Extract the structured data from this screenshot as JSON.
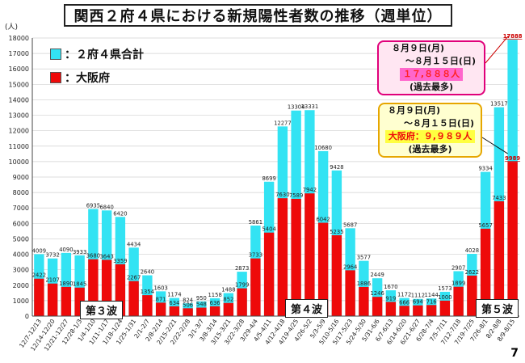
{
  "title": "関西２府４県における新規陽性者数の推移（週単位）",
  "legend": [
    {
      "label": "：２府４県合計",
      "color": "#33e3f3"
    },
    {
      "label": "：大阪府",
      "color": "#ee0a0a"
    }
  ],
  "waves": [
    "第３波",
    "第４波",
    "第５波"
  ],
  "callout_total": {
    "line1": "８月９日(月)",
    "line2": "～８月１５日(日)",
    "value": "１７,８８８人",
    "note": "(過去最多)"
  },
  "callout_osaka": {
    "line1": "８月９日(月)",
    "line2": "～８月１５日(日)",
    "value": "大阪府：９,９８９人",
    "note": "(過去最多)"
  },
  "page_number": "7",
  "chart_data": {
    "type": "bar",
    "ylabel": "(人)",
    "ylim": [
      0,
      18000
    ],
    "ytick_step": 1000,
    "grid": true,
    "categories": [
      "12/7-12/13",
      "12/14-12/20",
      "12/21-12/27",
      "12/28-1/3",
      "1/4-1/10",
      "1/11-1/17",
      "1/18-1/24",
      "1/25-1/31",
      "2/1-2/7",
      "2/8-2/14",
      "2/15-2/21",
      "2/22-2/28",
      "3/1-3/7",
      "3/8-3/14",
      "3/15-3/21",
      "3/22-3/28",
      "3/29-4/4",
      "4/5-4/11",
      "4/12-4/18",
      "4/19-4/25",
      "4/26-5/2",
      "5/3-5/9",
      "5/10-5/16",
      "5/17-5/23",
      "5/24-5/30",
      "5/31-6/6",
      "6/7-6/13",
      "6/14-6/20",
      "6/21-6/27",
      "6/28-7/4",
      "7/5-7/11",
      "7/12-7/18",
      "7/19-7/25",
      "7/26-8/1",
      "8/2-8/8",
      "8/9-8/15"
    ],
    "series": [
      {
        "name": "２府４県合計",
        "values": [
          4009,
          3732,
          4090,
          3933,
          6935,
          6840,
          6420,
          4434,
          2640,
          1603,
          1174,
          824,
          950,
          1158,
          1488,
          2873,
          5861,
          8699,
          12277,
          13304,
          13331,
          10680,
          9428,
          5687,
          3577,
          2449,
          1670,
          1172,
          1112,
          1144,
          1573,
          2907,
          4028,
          9334,
          13517,
          17888
        ]
      },
      {
        "name": "大阪府",
        "values": [
          2422,
          2107,
          1890,
          1845,
          3680,
          3643,
          3359,
          2267,
          1354,
          871,
          634,
          506,
          548,
          636,
          852,
          1799,
          3733,
          5404,
          7630,
          7589,
          7942,
          6042,
          5235,
          2964,
          1886,
          1246,
          919,
          666,
          694,
          716,
          1000,
          1899,
          2622,
          5657,
          7433,
          9989
        ]
      }
    ]
  }
}
